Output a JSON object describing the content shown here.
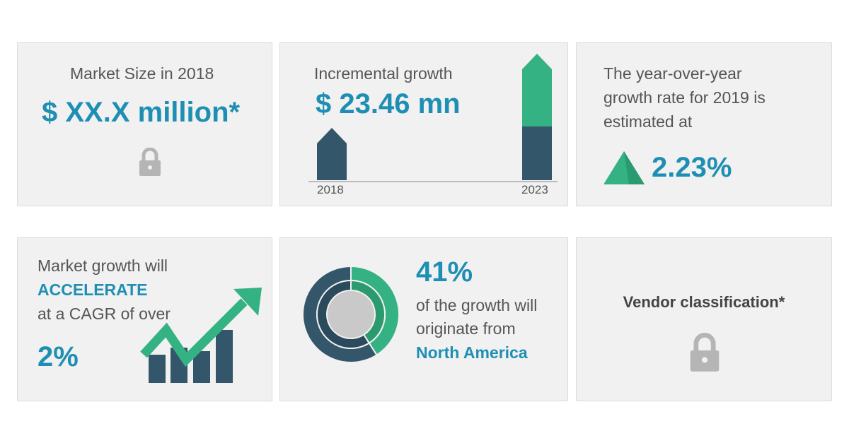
{
  "market_size": {
    "label": "Market Size in 2018",
    "value": "$ XX.X million*",
    "icon": "lock-icon"
  },
  "incremental": {
    "label": "Incremental growth",
    "value": "$ 23.46 mn",
    "years": [
      "2018",
      "2023"
    ]
  },
  "yoy": {
    "text": [
      "The year-over-year",
      "growth rate for 2019 is",
      "estimated at"
    ],
    "value": "2.23%",
    "icon": "triangle-up-icon"
  },
  "cagr": {
    "line1": "Market growth will",
    "highlight": "ACCELERATE",
    "line3": "at a CAGR of over",
    "value": "2%",
    "icon": "growth-chart-arrow-icon"
  },
  "region": {
    "value": "41%",
    "line1": "of the growth will",
    "line2": "originate from",
    "region": "North America",
    "share_percent": 41
  },
  "vendor": {
    "label": "Vendor classification*",
    "icon": "lock-icon"
  },
  "colors": {
    "accent": "#1e8fb3",
    "dark": "#34566a",
    "green": "#35b283",
    "lock": "#b5b5b5"
  }
}
